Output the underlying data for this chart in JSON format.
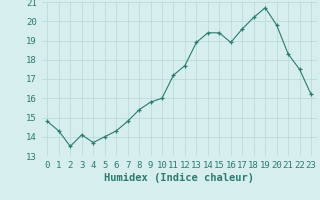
{
  "x": [
    0,
    1,
    2,
    3,
    4,
    5,
    6,
    7,
    8,
    9,
    10,
    11,
    12,
    13,
    14,
    15,
    16,
    17,
    18,
    19,
    20,
    21,
    22,
    23
  ],
  "y": [
    14.8,
    14.3,
    13.5,
    14.1,
    13.7,
    14.0,
    14.3,
    14.8,
    15.4,
    15.8,
    16.0,
    17.2,
    17.7,
    18.9,
    19.4,
    19.4,
    18.9,
    19.6,
    20.2,
    20.7,
    19.8,
    18.3,
    17.5,
    16.2
  ],
  "line_color": "#2d7a6e",
  "marker": "+",
  "bg_color": "#d6eeee",
  "grid_color": "#b8d8d8",
  "xlabel": "Humidex (Indice chaleur)",
  "ylim": [
    13,
    21
  ],
  "yticks": [
    13,
    14,
    15,
    16,
    17,
    18,
    19,
    20,
    21
  ],
  "xticks": [
    0,
    1,
    2,
    3,
    4,
    5,
    6,
    7,
    8,
    9,
    10,
    11,
    12,
    13,
    14,
    15,
    16,
    17,
    18,
    19,
    20,
    21,
    22,
    23
  ],
  "tick_fontsize": 6.5,
  "xlabel_fontsize": 7.5
}
